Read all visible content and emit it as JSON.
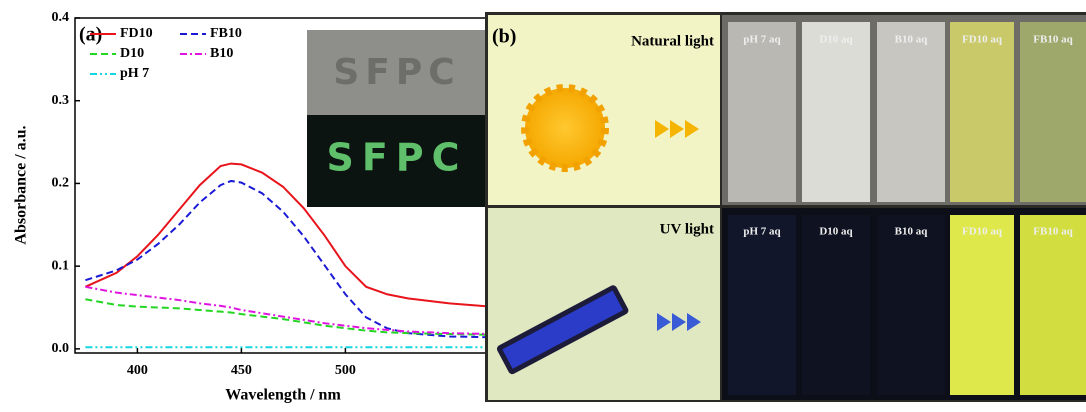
{
  "chart_data": {
    "type": "line",
    "panel_label": "(a)",
    "xlabel": "Wavelength / nm",
    "ylabel": "Absorbance / a.u.",
    "x": [
      375,
      390,
      400,
      410,
      420,
      430,
      440,
      445,
      450,
      460,
      470,
      480,
      490,
      500,
      510,
      520,
      530,
      550,
      570
    ],
    "xlim": [
      370,
      570
    ],
    "xticks": [
      400,
      450,
      500
    ],
    "ylim": [
      -0.005,
      0.4
    ],
    "yticks": [
      {
        "value": 0,
        "label": "0.0"
      },
      0.1,
      0.2,
      0.3,
      0.4
    ],
    "series": [
      {
        "name": "FD10",
        "color": "#e8141b",
        "dash": "solid",
        "values": [
          0.075,
          0.092,
          0.112,
          0.138,
          0.168,
          0.198,
          0.221,
          0.224,
          0.223,
          0.213,
          0.196,
          0.17,
          0.137,
          0.1,
          0.075,
          0.066,
          0.061,
          0.055,
          0.051
        ]
      },
      {
        "name": "FB10",
        "color": "#1a1ad6",
        "dash": "dash",
        "values": [
          0.083,
          0.095,
          0.108,
          0.127,
          0.15,
          0.177,
          0.198,
          0.203,
          0.201,
          0.188,
          0.166,
          0.136,
          0.101,
          0.066,
          0.038,
          0.025,
          0.019,
          0.015,
          0.014
        ]
      },
      {
        "name": "D10",
        "color": "#22d622",
        "dash": "dash",
        "values": [
          0.06,
          0.053,
          0.051,
          0.05,
          0.049,
          0.047,
          0.045,
          0.044,
          0.042,
          0.039,
          0.036,
          0.032,
          0.028,
          0.025,
          0.022,
          0.02,
          0.019,
          0.018,
          0.017
        ]
      },
      {
        "name": "B10",
        "color": "#e014e0",
        "dash": "dashdot",
        "values": [
          0.075,
          0.068,
          0.065,
          0.062,
          0.059,
          0.055,
          0.052,
          0.05,
          0.047,
          0.043,
          0.039,
          0.035,
          0.031,
          0.028,
          0.025,
          0.023,
          0.021,
          0.019,
          0.018
        ]
      },
      {
        "name": "pH 7",
        "color": "#14d6e0",
        "dash": "dashdotdot",
        "values": [
          0.002,
          0.002,
          0.002,
          0.002,
          0.002,
          0.002,
          0.002,
          0.002,
          0.002,
          0.002,
          0.002,
          0.002,
          0.002,
          0.002,
          0.002,
          0.002,
          0.002,
          0.002,
          0.002
        ]
      }
    ],
    "inset": [
      "SFPC",
      "SFPC"
    ]
  },
  "panel_b": {
    "label": "(b)",
    "natural": "Natural light",
    "uv": "UV light",
    "cuvettes": [
      "pH 7 aq",
      "D10 aq",
      "B10 aq",
      "FD10 aq",
      "FB10 aq"
    ]
  }
}
